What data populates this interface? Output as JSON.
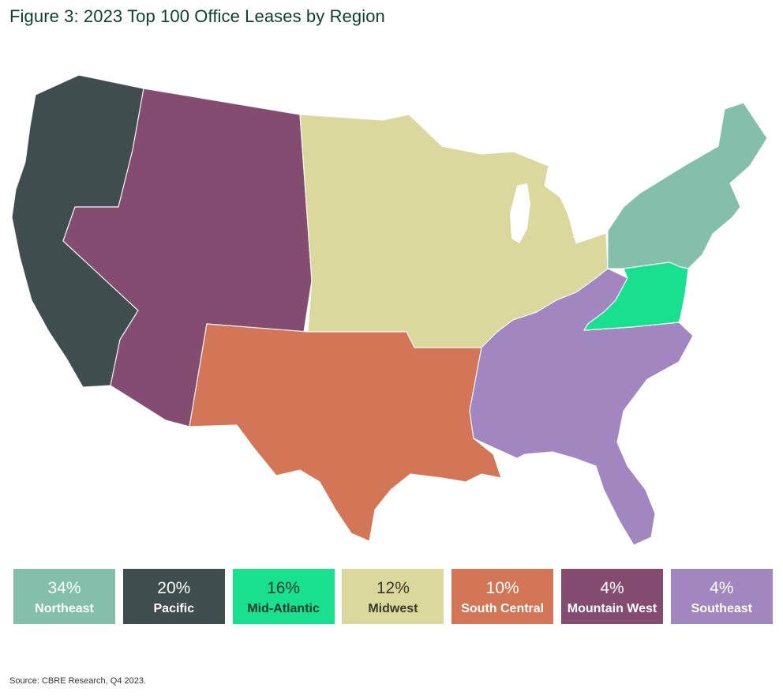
{
  "title": "Figure 3: 2023 Top 100 Office Leases by Region",
  "source": "Source: CBRE Research, Q4 2023.",
  "regions": [
    {
      "key": "northeast",
      "name": "Northeast",
      "percent": "34%",
      "share": 34,
      "color": "#84bfab",
      "text_color": "#ffffff"
    },
    {
      "key": "pacific",
      "name": "Pacific",
      "percent": "20%",
      "share": 20,
      "color": "#3f4d4e",
      "text_color": "#ffffff"
    },
    {
      "key": "mid-atlantic",
      "name": "Mid-Atlantic",
      "percent": "16%",
      "share": 16,
      "color": "#18e08e",
      "text_color": "#1e3b2f"
    },
    {
      "key": "midwest",
      "name": "Midwest",
      "percent": "12%",
      "share": 12,
      "color": "#dad89c",
      "text_color": "#3a3a2a"
    },
    {
      "key": "south-central",
      "name": "South Central",
      "percent": "10%",
      "share": 10,
      "color": "#d37657",
      "text_color": "#ffffff"
    },
    {
      "key": "mountain-west",
      "name": "Mountain West",
      "percent": "4%",
      "share": 4,
      "color": "#844c71",
      "text_color": "#ffffff"
    },
    {
      "key": "southeast",
      "name": "Southeast",
      "percent": "4%",
      "share": 4,
      "color": "#a186c0",
      "text_color": "#ffffff"
    }
  ]
}
